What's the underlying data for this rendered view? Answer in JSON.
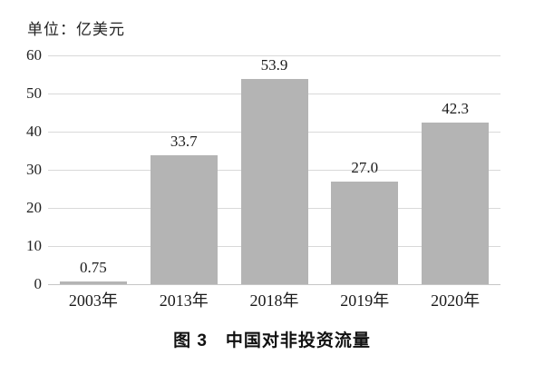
{
  "unit_label": "单位：亿美元",
  "caption": "图 3　中国对非投资流量",
  "chart_data": {
    "type": "bar",
    "title": "图 3　中国对非投资流量",
    "unit": "单位：亿美元",
    "categories": [
      "2003年",
      "2013年",
      "2018年",
      "2019年",
      "2020年"
    ],
    "values": [
      0.75,
      33.7,
      53.9,
      27.0,
      42.3
    ],
    "value_labels": [
      "0.75",
      "33.7",
      "53.9",
      "27.0",
      "42.3"
    ],
    "xlabel": "",
    "ylabel": "",
    "ylim": [
      0,
      60
    ],
    "yticks": [
      0,
      10,
      20,
      30,
      40,
      50,
      60
    ],
    "grid": true,
    "legend": "none",
    "bar_color": "#b4b4b4",
    "gridline_color": "#d9d9d9",
    "axisline_color": "#c6c6c6",
    "text_color": "#1a1a1a"
  }
}
